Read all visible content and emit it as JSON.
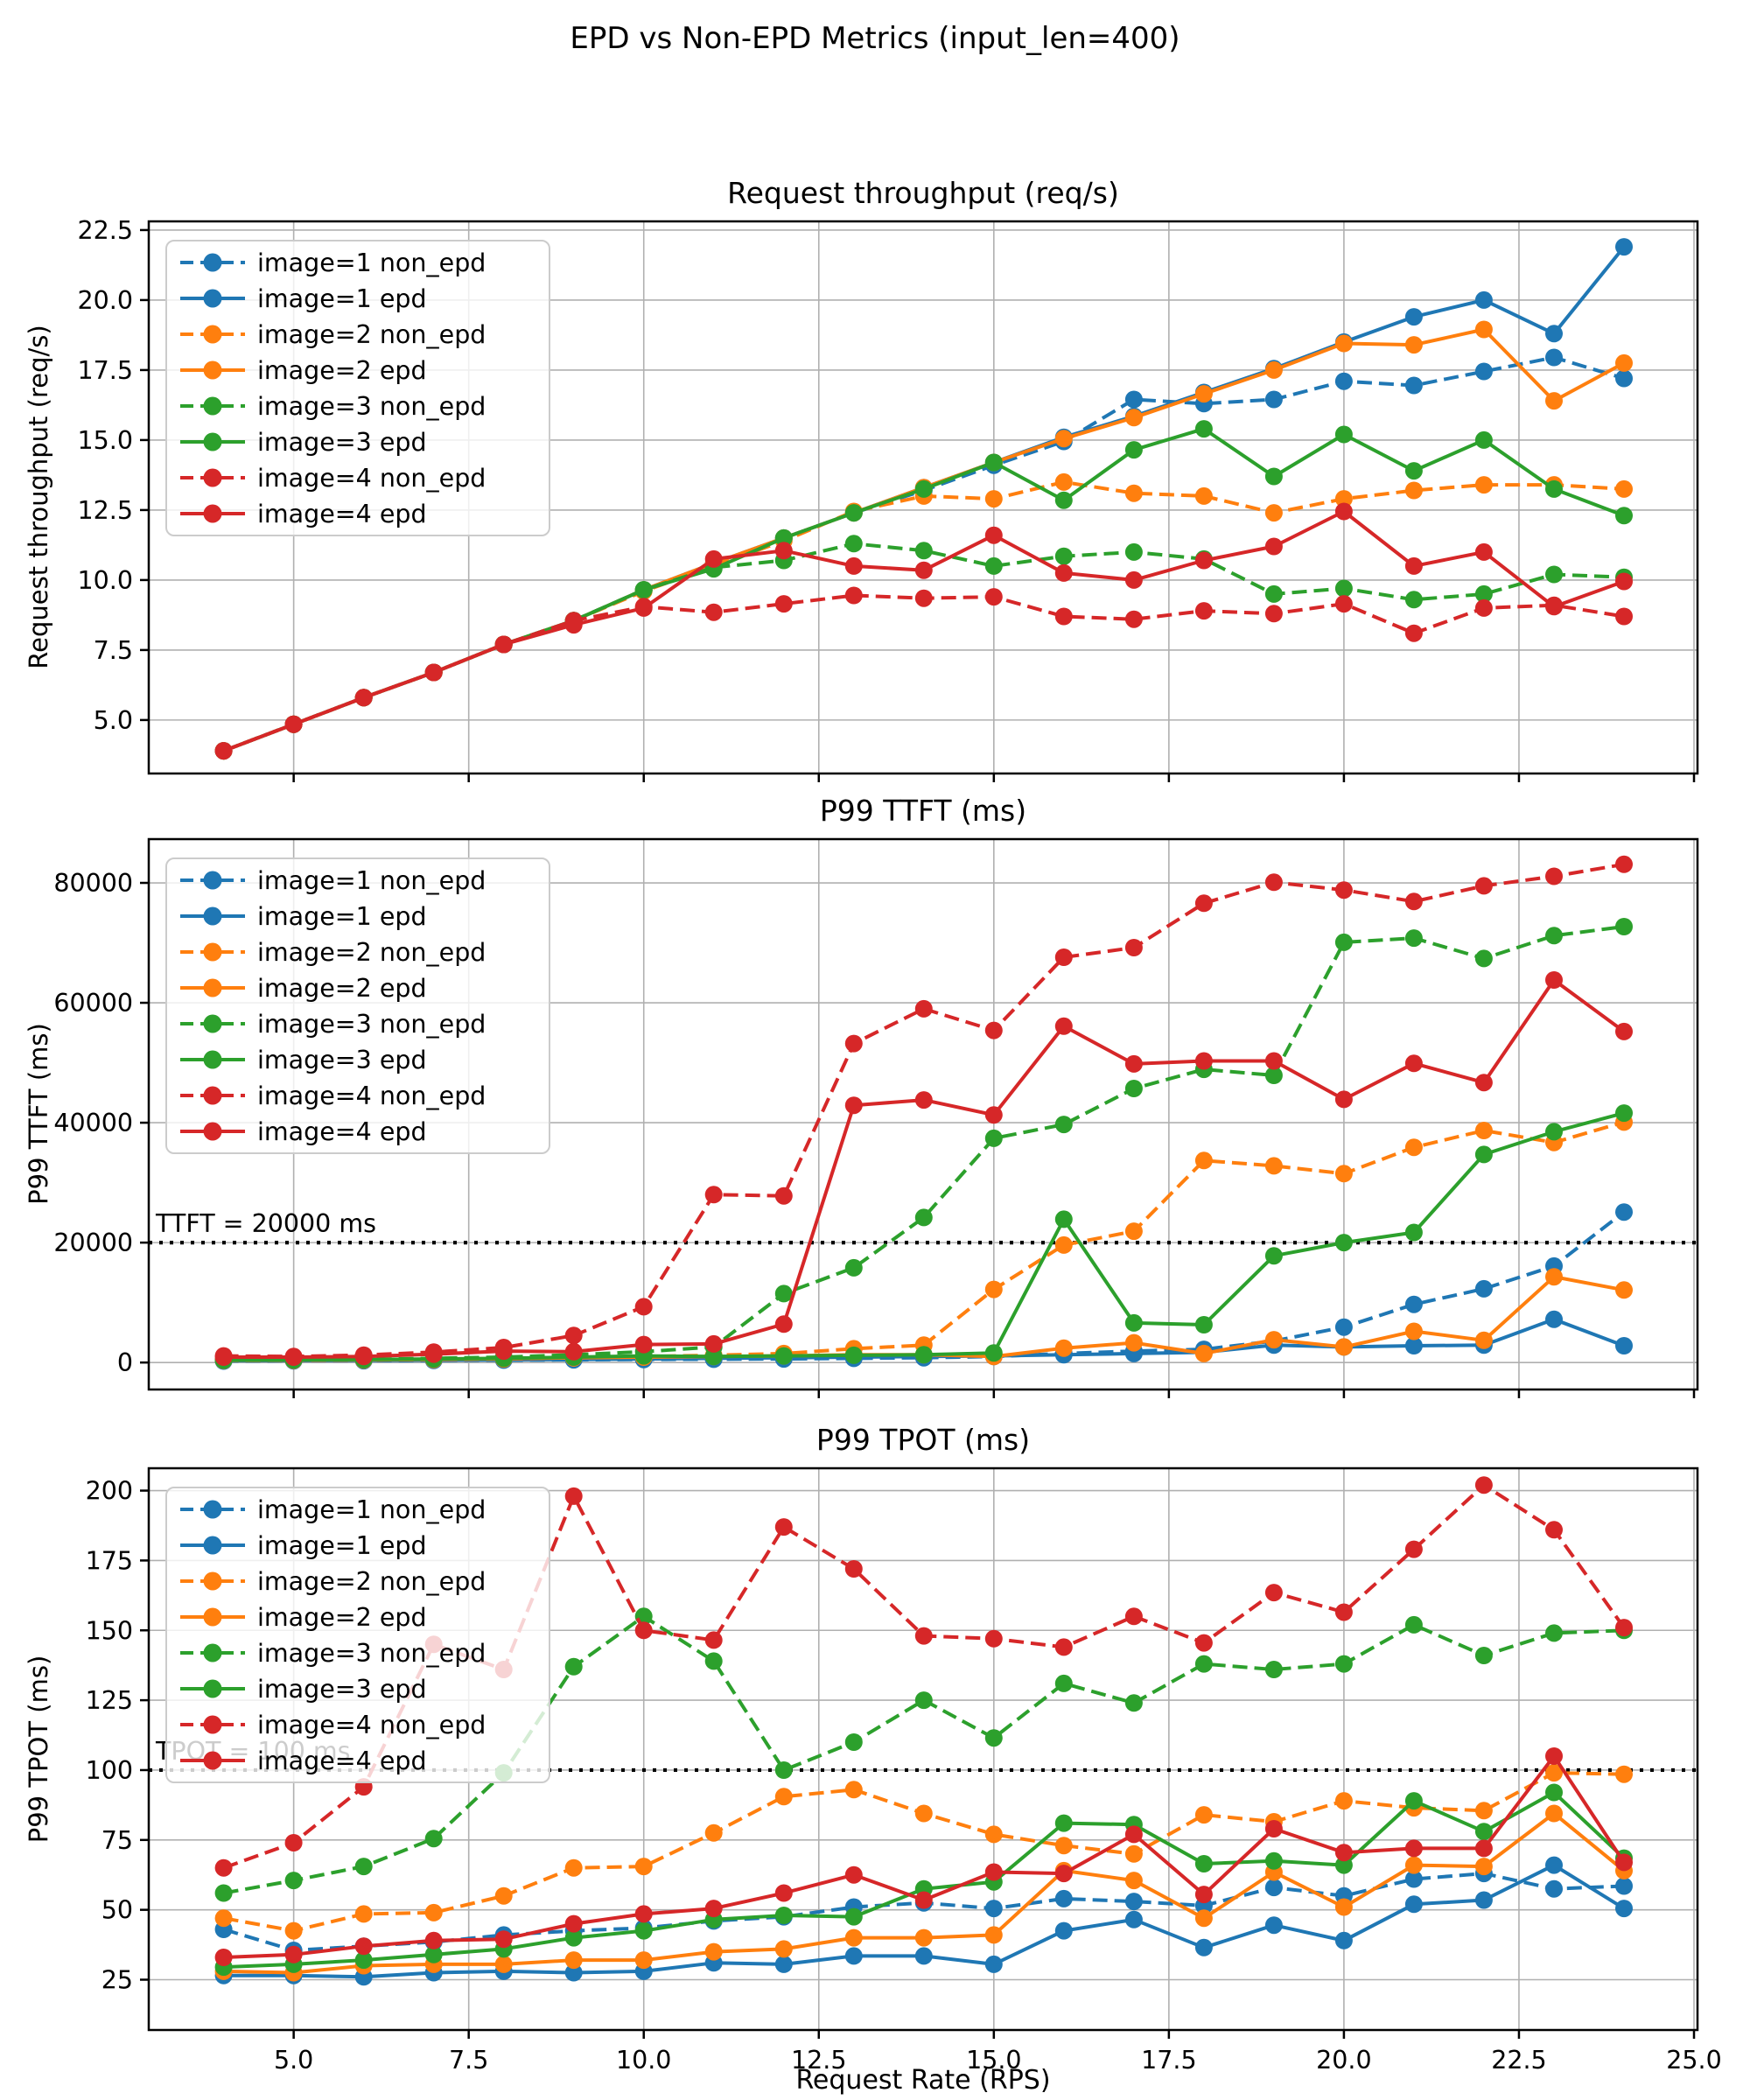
{
  "figure": {
    "title": "EPD vs Non-EPD Metrics (input_len=400)",
    "background_color": "#ffffff",
    "grid_color": "#b0b0b0",
    "axis_color": "#000000",
    "legend_position": "upper left"
  },
  "legend_entries": [
    {
      "label": "image=1 non_epd",
      "color": "#1f77b4",
      "dashed": true
    },
    {
      "label": "image=1 epd",
      "color": "#1f77b4",
      "dashed": false
    },
    {
      "label": "image=2 non_epd",
      "color": "#ff7f0e",
      "dashed": true
    },
    {
      "label": "image=2 epd",
      "color": "#ff7f0e",
      "dashed": false
    },
    {
      "label": "image=3 non_epd",
      "color": "#2ca02c",
      "dashed": true
    },
    {
      "label": "image=3 epd",
      "color": "#2ca02c",
      "dashed": false
    },
    {
      "label": "image=4 non_epd",
      "color": "#d62728",
      "dashed": true
    },
    {
      "label": "image=4 epd",
      "color": "#d62728",
      "dashed": false
    }
  ],
  "chart_data": [
    {
      "type": "line",
      "title": "Request throughput (req/s)",
      "ylabel": "Request throughput (req/s)",
      "xlabel": "",
      "x": [
        4,
        5,
        6,
        7,
        8,
        9,
        10,
        11,
        12,
        13,
        14,
        15,
        16,
        17,
        18,
        19,
        20,
        21,
        22,
        23,
        24
      ],
      "xlim": [
        2.93,
        25.05
      ],
      "ylim": [
        3.09,
        22.81
      ],
      "yticks": [
        5.0,
        7.5,
        10.0,
        12.5,
        15.0,
        17.5,
        20.0,
        22.5
      ],
      "ytick_labels": [
        "5.0",
        "7.5",
        "10.0",
        "12.5",
        "15.0",
        "17.5",
        "20.0",
        "22.5"
      ],
      "xticks": [
        5,
        7.5,
        10,
        12.5,
        15,
        17.5,
        20,
        22.5,
        25
      ],
      "xtick_labels": null,
      "grid": true,
      "legend": true,
      "annotation": null,
      "series": [
        {
          "name": "image=1 non_epd",
          "color": "#1f77b4",
          "dashed": true,
          "values": [
            3.9,
            4.85,
            5.8,
            6.7,
            7.7,
            8.55,
            9.65,
            10.55,
            11.5,
            12.4,
            13.2,
            14.1,
            14.95,
            16.45,
            16.3,
            16.45,
            17.1,
            16.95,
            17.45,
            17.95,
            17.2
          ]
        },
        {
          "name": "image=1 epd",
          "color": "#1f77b4",
          "dashed": false,
          "values": [
            3.9,
            4.85,
            5.8,
            6.7,
            7.7,
            8.55,
            9.65,
            10.6,
            11.5,
            12.4,
            13.3,
            14.2,
            15.1,
            15.85,
            16.7,
            17.55,
            18.5,
            19.4,
            20.0,
            18.8,
            21.9
          ]
        },
        {
          "name": "image=2 non_epd",
          "color": "#ff7f0e",
          "dashed": true,
          "values": [
            3.9,
            4.85,
            5.8,
            6.7,
            7.7,
            8.55,
            9.6,
            10.5,
            11.4,
            12.45,
            13.0,
            12.9,
            13.5,
            13.1,
            13.0,
            12.4,
            12.9,
            13.2,
            13.4,
            13.4,
            13.25
          ]
        },
        {
          "name": "image=2 epd",
          "color": "#ff7f0e",
          "dashed": false,
          "values": [
            3.9,
            4.85,
            5.8,
            6.7,
            7.7,
            8.55,
            9.65,
            10.6,
            11.5,
            12.4,
            13.3,
            14.2,
            15.05,
            15.8,
            16.65,
            17.5,
            18.45,
            18.4,
            18.95,
            16.4,
            17.75
          ]
        },
        {
          "name": "image=3 non_epd",
          "color": "#2ca02c",
          "dashed": true,
          "values": [
            3.9,
            4.85,
            5.8,
            6.7,
            7.7,
            8.55,
            9.65,
            10.45,
            10.7,
            11.3,
            11.05,
            10.5,
            10.85,
            11.0,
            10.75,
            9.5,
            9.7,
            9.3,
            9.5,
            10.2,
            10.1
          ]
        },
        {
          "name": "image=3 epd",
          "color": "#2ca02c",
          "dashed": false,
          "values": [
            3.9,
            4.85,
            5.8,
            6.7,
            7.7,
            8.55,
            9.65,
            10.4,
            11.5,
            12.4,
            13.25,
            14.2,
            12.85,
            14.65,
            15.4,
            13.7,
            15.2,
            13.9,
            15.0,
            13.25,
            12.3
          ]
        },
        {
          "name": "image=4 non_epd",
          "color": "#d62728",
          "dashed": true,
          "values": [
            3.9,
            4.85,
            5.8,
            6.7,
            7.7,
            8.55,
            9.05,
            8.85,
            9.15,
            9.45,
            9.35,
            9.4,
            8.7,
            8.6,
            8.9,
            8.8,
            9.15,
            8.1,
            9.0,
            9.1,
            8.7
          ]
        },
        {
          "name": "image=4 epd",
          "color": "#d62728",
          "dashed": false,
          "values": [
            3.9,
            4.85,
            5.8,
            6.7,
            7.7,
            8.4,
            9.0,
            10.75,
            11.05,
            10.5,
            10.35,
            11.6,
            10.25,
            10.0,
            10.7,
            11.2,
            12.45,
            10.5,
            11.0,
            9.05,
            9.95
          ]
        }
      ]
    },
    {
      "type": "line",
      "title": "P99 TTFT (ms)",
      "ylabel": "P99 TTFT (ms)",
      "xlabel": "",
      "x": [
        4,
        5,
        6,
        7,
        8,
        9,
        10,
        11,
        12,
        13,
        14,
        15,
        16,
        17,
        18,
        19,
        20,
        21,
        22,
        23,
        24
      ],
      "xlim": [
        2.93,
        25.05
      ],
      "ylim": [
        -4500,
        87300
      ],
      "yticks": [
        0,
        20000,
        40000,
        60000,
        80000
      ],
      "ytick_labels": [
        "0",
        "20000",
        "40000",
        "60000",
        "80000"
      ],
      "xticks": [
        5,
        7.5,
        10,
        12.5,
        15,
        17.5,
        20,
        22.5,
        25
      ],
      "xtick_labels": null,
      "grid": true,
      "legend": true,
      "annotation": {
        "text": "TTFT = 20000 ms",
        "value": 20000
      },
      "series": [
        {
          "name": "image=1 non_epd",
          "color": "#1f77b4",
          "dashed": true,
          "values": [
            250,
            280,
            300,
            350,
            400,
            450,
            500,
            550,
            600,
            700,
            800,
            1000,
            1500,
            1900,
            2200,
            3600,
            5900,
            9700,
            12300,
            16100,
            25100
          ]
        },
        {
          "name": "image=1 epd",
          "color": "#1f77b4",
          "dashed": false,
          "values": [
            300,
            320,
            350,
            400,
            450,
            500,
            600,
            700,
            800,
            900,
            1000,
            1100,
            1300,
            1500,
            1700,
            2900,
            2600,
            2800,
            2900,
            7200,
            2800
          ]
        },
        {
          "name": "image=2 non_epd",
          "color": "#ff7f0e",
          "dashed": true,
          "values": [
            350,
            380,
            420,
            500,
            600,
            800,
            1000,
            1200,
            1500,
            2300,
            2900,
            12200,
            19600,
            21900,
            33700,
            32800,
            31500,
            35900,
            38700,
            36700,
            40100
          ]
        },
        {
          "name": "image=2 epd",
          "color": "#ff7f0e",
          "dashed": false,
          "values": [
            400,
            420,
            450,
            550,
            650,
            800,
            900,
            1000,
            1100,
            1300,
            1300,
            1000,
            2400,
            3300,
            1500,
            3800,
            2600,
            5200,
            3700,
            14300,
            12100
          ]
        },
        {
          "name": "image=3 non_epd",
          "color": "#2ca02c",
          "dashed": true,
          "values": [
            400,
            450,
            500,
            700,
            900,
            1300,
            1800,
            2600,
            11500,
            15800,
            24200,
            37400,
            39700,
            45700,
            48900,
            47900,
            70100,
            70800,
            67400,
            71200,
            72700
          ]
        },
        {
          "name": "image=3 epd",
          "color": "#2ca02c",
          "dashed": false,
          "values": [
            400,
            450,
            500,
            600,
            700,
            900,
            1100,
            1000,
            1100,
            1200,
            1300,
            1600,
            23900,
            6600,
            6300,
            17800,
            20000,
            21700,
            34700,
            38500,
            41600
          ]
        },
        {
          "name": "image=4 non_epd",
          "color": "#d62728",
          "dashed": true,
          "values": [
            1100,
            1000,
            1240,
            1740,
            2500,
            4500,
            9300,
            28000,
            27800,
            53200,
            59000,
            55400,
            67600,
            69200,
            76600,
            80100,
            78800,
            76900,
            79500,
            81100,
            83100
          ]
        },
        {
          "name": "image=4 epd",
          "color": "#d62728",
          "dashed": false,
          "values": [
            900,
            900,
            1000,
            1400,
            1900,
            1800,
            3000,
            3100,
            6400,
            42900,
            43800,
            41300,
            56100,
            49800,
            50300,
            50300,
            43900,
            49900,
            46700,
            63800,
            55200
          ]
        }
      ]
    },
    {
      "type": "line",
      "title": "P99 TPOT (ms)",
      "ylabel": "P99 TPOT (ms)",
      "xlabel": "Request Rate (RPS)",
      "x": [
        4,
        5,
        6,
        7,
        8,
        9,
        10,
        11,
        12,
        13,
        14,
        15,
        16,
        17,
        18,
        19,
        20,
        21,
        22,
        23,
        24
      ],
      "xlim": [
        2.93,
        25.05
      ],
      "ylim": [
        7,
        208
      ],
      "yticks": [
        25,
        50,
        75,
        100,
        125,
        150,
        175,
        200
      ],
      "ytick_labels": [
        "25",
        "50",
        "75",
        "100",
        "125",
        "150",
        "175",
        "200"
      ],
      "xticks": [
        5,
        7.5,
        10,
        12.5,
        15,
        17.5,
        20,
        22.5,
        25
      ],
      "xtick_labels": [
        "5.0",
        "7.5",
        "10.0",
        "12.5",
        "15.0",
        "17.5",
        "20.0",
        "22.5",
        "25.0"
      ],
      "grid": true,
      "legend": true,
      "annotation": {
        "text": "TPOT = 100 ms",
        "value": 100
      },
      "series": [
        {
          "name": "image=1 non_epd",
          "color": "#1f77b4",
          "dashed": true,
          "values": [
            43,
            35.5,
            37,
            38.5,
            41,
            42.5,
            43.5,
            46,
            47.5,
            51,
            52.5,
            50.5,
            54,
            53,
            51.5,
            58,
            55,
            61,
            63,
            57.5,
            58.5
          ]
        },
        {
          "name": "image=1 epd",
          "color": "#1f77b4",
          "dashed": false,
          "values": [
            26.5,
            26.5,
            26,
            27.5,
            28,
            27.5,
            28,
            31,
            30.5,
            33.5,
            33.5,
            30.5,
            42.5,
            46.5,
            36.5,
            44.5,
            39,
            52,
            53.5,
            66,
            50.5
          ]
        },
        {
          "name": "image=2 non_epd",
          "color": "#ff7f0e",
          "dashed": true,
          "values": [
            47,
            42.5,
            48.5,
            49,
            55,
            65,
            65.5,
            77.5,
            90.5,
            93,
            84.5,
            77,
            73,
            70,
            84,
            81.5,
            89,
            86.5,
            85.5,
            99,
            98.5
          ]
        },
        {
          "name": "image=2 epd",
          "color": "#ff7f0e",
          "dashed": false,
          "values": [
            28,
            27.5,
            30,
            30.5,
            30.5,
            32,
            32,
            35,
            36,
            40,
            40,
            41,
            64,
            60.5,
            47,
            63.5,
            51,
            66,
            65.5,
            84.5,
            64
          ]
        },
        {
          "name": "image=3 non_epd",
          "color": "#2ca02c",
          "dashed": true,
          "values": [
            56,
            60.5,
            65.5,
            75.5,
            99,
            137,
            155,
            139,
            100,
            110,
            125,
            111.5,
            131,
            124,
            138,
            136,
            138,
            152,
            141,
            149,
            150
          ]
        },
        {
          "name": "image=3 epd",
          "color": "#2ca02c",
          "dashed": false,
          "values": [
            29.5,
            30.5,
            32,
            34,
            36,
            40,
            42.5,
            46.5,
            48,
            47.5,
            57.5,
            60,
            81,
            80.5,
            66.5,
            67.5,
            66,
            89,
            78,
            92,
            68.5
          ]
        },
        {
          "name": "image=4 non_epd",
          "color": "#d62728",
          "dashed": true,
          "values": [
            65,
            74,
            94,
            145,
            136,
            198,
            150,
            146.5,
            187,
            172,
            148,
            147,
            144,
            155,
            145.5,
            163.5,
            156.5,
            179,
            202,
            186,
            151
          ]
        },
        {
          "name": "image=4 epd",
          "color": "#d62728",
          "dashed": false,
          "values": [
            33,
            34,
            37,
            39,
            39.5,
            45,
            48.5,
            50.5,
            56,
            62.5,
            53.5,
            63.5,
            63,
            77,
            55.5,
            79,
            70.5,
            72,
            72,
            105,
            67
          ]
        }
      ]
    }
  ]
}
